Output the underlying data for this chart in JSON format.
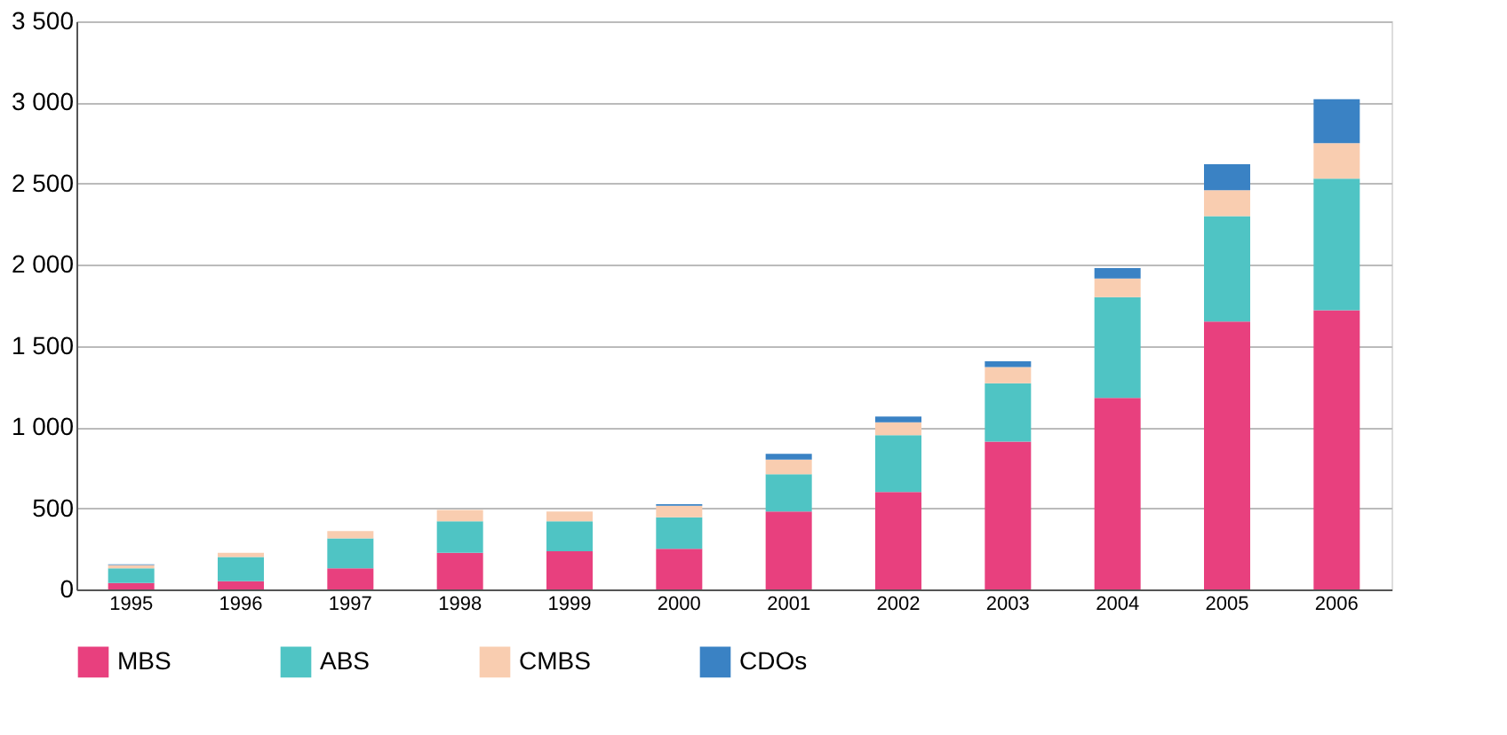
{
  "chart_data": {
    "type": "bar",
    "stacked": true,
    "categories": [
      "1995",
      "1996",
      "1997",
      "1998",
      "1999",
      "2000",
      "2001",
      "2002",
      "2003",
      "2004",
      "2005",
      "2006"
    ],
    "series": [
      {
        "name": "MBS",
        "color": "#e8407e",
        "values": [
          40,
          50,
          130,
          225,
          235,
          250,
          480,
          600,
          910,
          1180,
          1650,
          1720
        ]
      },
      {
        "name": "ABS",
        "color": "#4fc4c4",
        "values": [
          90,
          150,
          185,
          195,
          185,
          195,
          230,
          350,
          360,
          620,
          650,
          810
        ]
      },
      {
        "name": "CMBS",
        "color": "#f9cdb0",
        "values": [
          20,
          25,
          45,
          70,
          60,
          70,
          90,
          80,
          100,
          115,
          160,
          220
        ]
      },
      {
        "name": "CDOs",
        "color": "#3a82c4",
        "values": [
          5,
          0,
          0,
          0,
          0,
          10,
          35,
          35,
          35,
          65,
          160,
          270
        ]
      }
    ],
    "ylim": [
      0,
      3500
    ],
    "yticks": [
      {
        "value": 0,
        "label": "0"
      },
      {
        "value": 500,
        "label": "500"
      },
      {
        "value": 1000,
        "label": "1 000"
      },
      {
        "value": 1500,
        "label": "1 500"
      },
      {
        "value": 2000,
        "label": "2 000"
      },
      {
        "value": 2500,
        "label": "2 500"
      },
      {
        "value": 3000,
        "label": "3 000"
      },
      {
        "value": 3500,
        "label": "3 500"
      }
    ],
    "grid": "y",
    "legend": "bottom"
  }
}
